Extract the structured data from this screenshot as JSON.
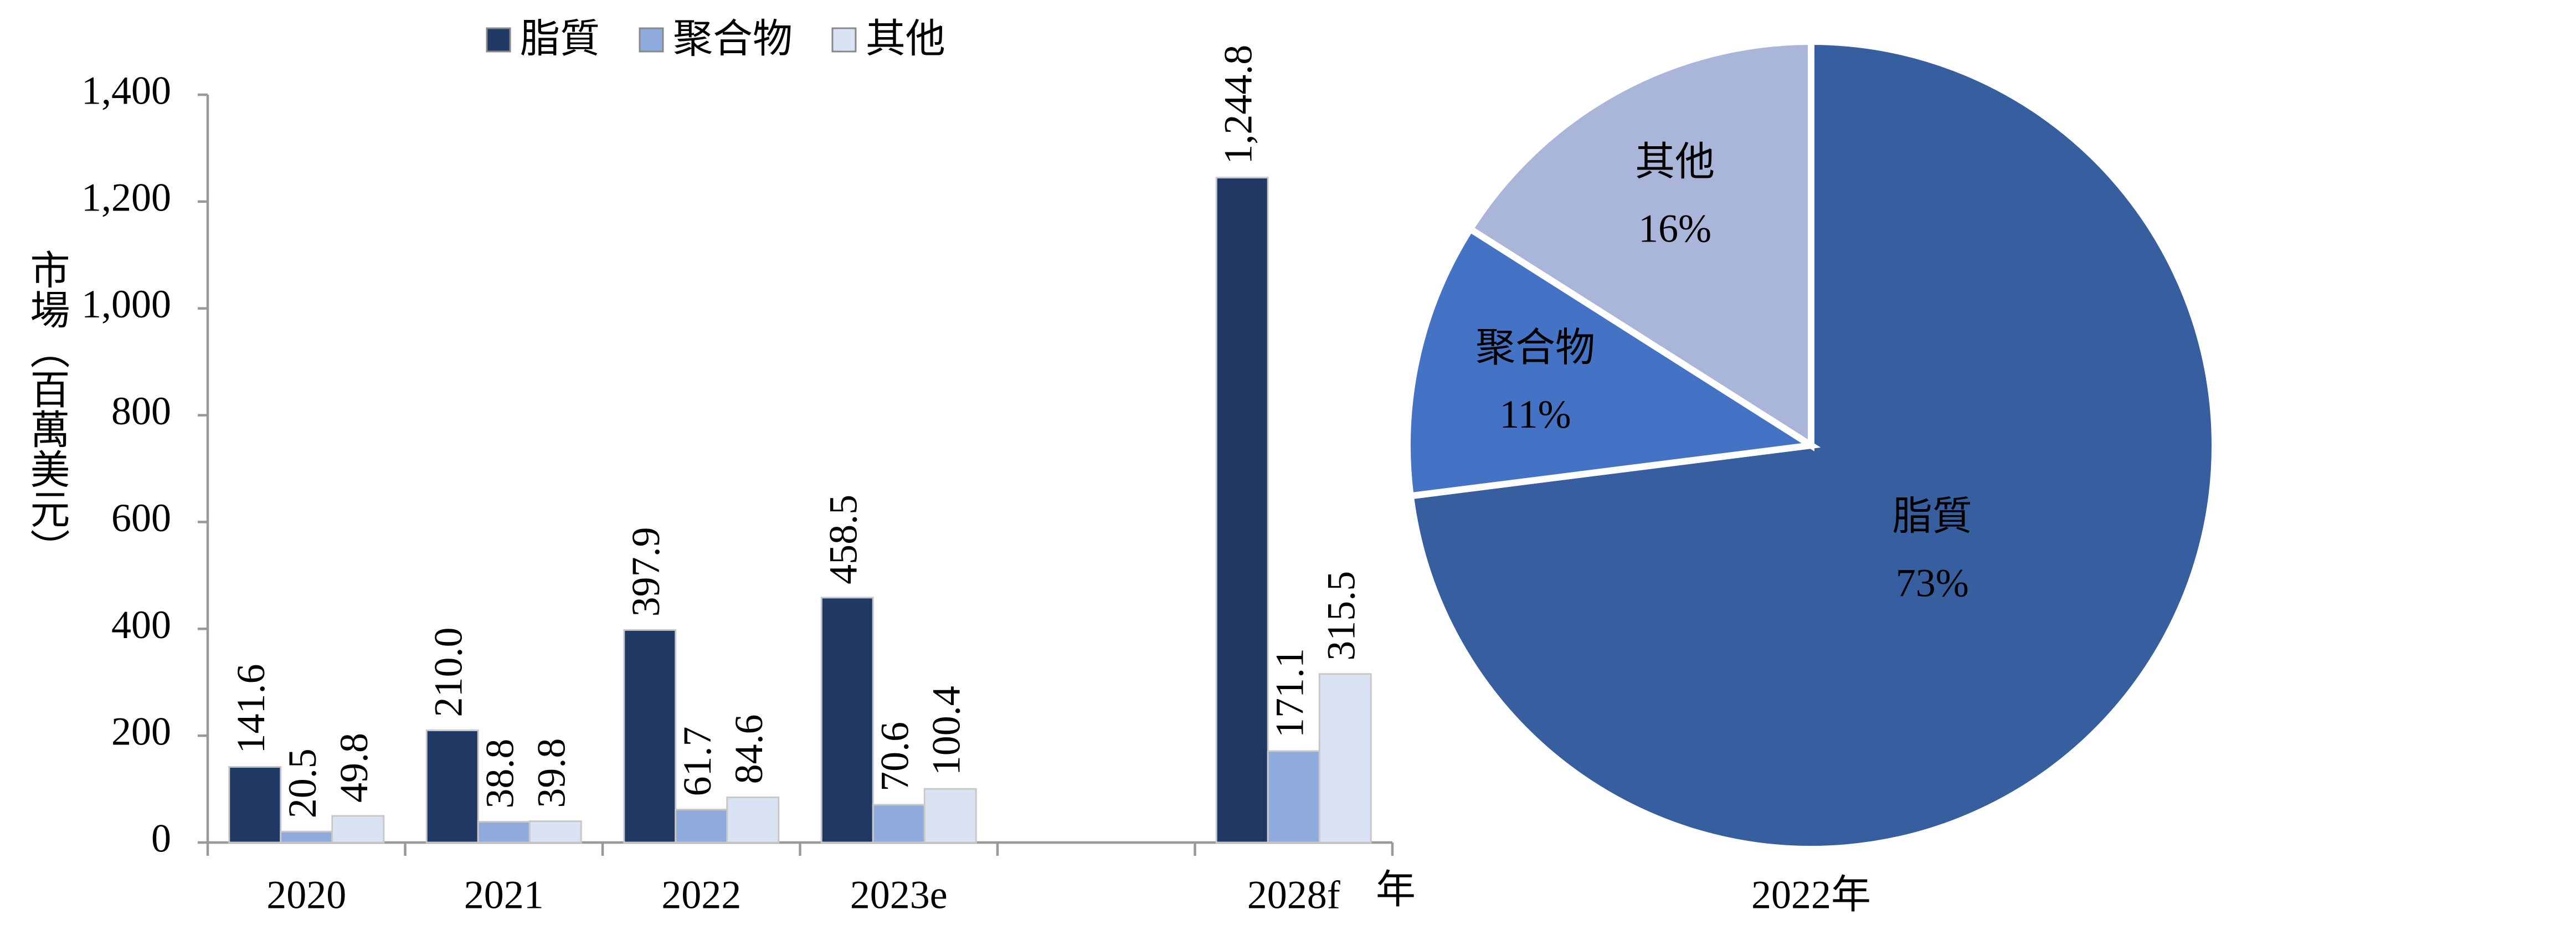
{
  "chart_data": [
    {
      "type": "bar",
      "categories": [
        "2020",
        "2021",
        "2022",
        "2023e",
        null,
        "2028f"
      ],
      "series": [
        {
          "name": "脂質",
          "color": "#1f3864",
          "values": [
            141.6,
            210.0,
            397.9,
            458.5,
            null,
            1244.8
          ],
          "value_labels": [
            "141.6",
            "210.0",
            "397.9",
            "458.5",
            null,
            "1,244.8"
          ]
        },
        {
          "name": "聚合物",
          "color": "#8faadc",
          "values": [
            20.5,
            38.8,
            61.7,
            70.6,
            null,
            171.1
          ],
          "value_labels": [
            "20.5",
            "38.8",
            "61.7",
            "70.6",
            null,
            "171.1"
          ]
        },
        {
          "name": "其他",
          "color": "#dae3f3",
          "values": [
            49.8,
            39.8,
            84.6,
            100.4,
            null,
            315.5
          ],
          "value_labels": [
            "49.8",
            "39.8",
            "84.6",
            "100.4",
            null,
            "315.5"
          ]
        }
      ],
      "x_label": "年",
      "y_label": "市場（百萬美元）",
      "ylim": [
        0,
        1400
      ],
      "yticks": [
        0,
        200,
        400,
        600,
        800,
        {
          "value": 1000,
          "label": "1,000"
        },
        {
          "value": 1200,
          "label": "1,200"
        },
        {
          "value": 1400,
          "label": "1,400"
        }
      ],
      "grid": false,
      "legend": "top"
    },
    {
      "type": "pie",
      "title": "2022年",
      "categories": [
        "脂質",
        "聚合物",
        "其他"
      ],
      "values": [
        73,
        11,
        16
      ],
      "value_labels": [
        "73%",
        "11%",
        "16%"
      ],
      "colors": [
        "#375f9f",
        "#4472c4",
        "#a9b6da"
      ],
      "label_colors": [
        "#ffffff",
        "#ffffff",
        "#000000"
      ]
    }
  ]
}
